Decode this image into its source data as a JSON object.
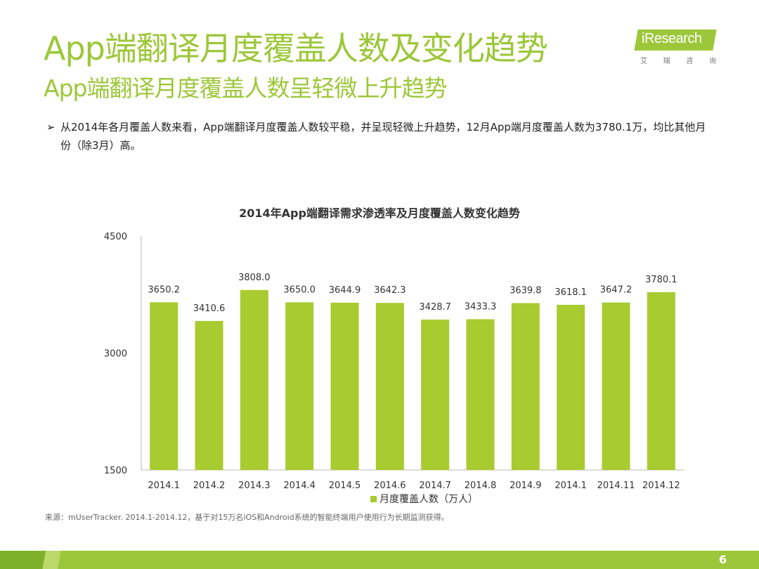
{
  "header": {
    "title": "App端翻译月度覆盖人数及变化趋势",
    "subtitle": "App端翻译月度覆盖人数呈轻微上升趋势"
  },
  "logo": {
    "brand": "iResearch",
    "cn_chars": [
      "艾",
      "瑞",
      "咨",
      "询"
    ]
  },
  "bullet": {
    "arrow": "➢",
    "text": "从2014年各月覆盖人数来看，App端翻译月度覆盖人数较平稳，并呈现轻微上升趋势，12月App端月度覆盖人数为3780.1万，均比其他月份（除3月）高。"
  },
  "chart_data": {
    "type": "bar",
    "title": "2014年App端翻译需求渗透率及月度覆盖人数变化趋势",
    "categories": [
      "2014.1",
      "2014.2",
      "2014.3",
      "2014.4",
      "2014.5",
      "2014.6",
      "2014.7",
      "2014.8",
      "2014.9",
      "2014.1",
      "2014.11",
      "2014.12"
    ],
    "series": [
      {
        "name": "月度覆盖人数（万人）",
        "values": [
          3650.2,
          3410.6,
          3808.0,
          3650.0,
          3644.9,
          3642.3,
          3428.7,
          3433.3,
          3639.8,
          3618.1,
          3647.2,
          3780.1
        ],
        "labels": [
          "3650.2",
          "3410.6",
          "3808.0",
          "3650.0",
          "3644.9",
          "3642.3",
          "3428.7",
          "3433.3",
          "3639.8",
          "3618.1",
          "3647.2",
          "3780.1"
        ],
        "color": "#a8cb2f"
      }
    ],
    "ylim": [
      1500,
      4500
    ],
    "yticks": [
      1500,
      3000,
      4500
    ],
    "grid": false,
    "legend_position": "bottom"
  },
  "source": "来源：mUserTracker. 2014.1-2014.12，基于对15万名iOS和Android系统的智能终端用户使用行为长期监测获得。",
  "footer": {
    "page_number": "6"
  },
  "colors": {
    "accent": "#9dc73a",
    "bar": "#a8cb2f"
  }
}
